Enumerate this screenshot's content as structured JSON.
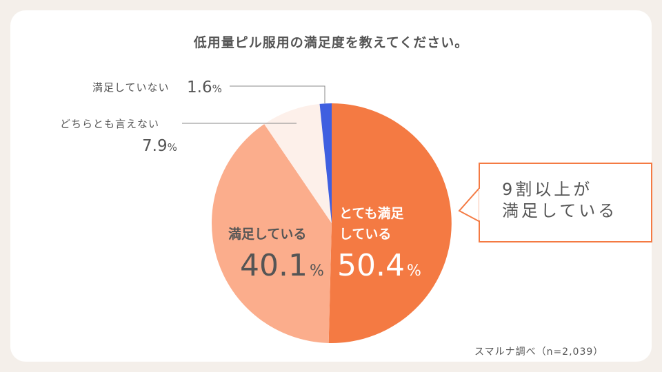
{
  "title": "低用量ピル服用の満足度を教えてください。",
  "chart_data": {
    "type": "pie",
    "slices": [
      {
        "label": "とても満足している",
        "label_lines": [
          "とても満足",
          "している"
        ],
        "value": 50.4,
        "color": "#f47a43"
      },
      {
        "label": "満足している",
        "value": 40.1,
        "color": "#fbad8c"
      },
      {
        "label": "どちらとも言えない",
        "value": 7.9,
        "color": "#fdf0ea"
      },
      {
        "label": "満足していない",
        "value": 1.6,
        "color": "#3f5fe0"
      }
    ],
    "unit": "%"
  },
  "callout": {
    "line1": "9割以上が",
    "line2": "満足している"
  },
  "source": "スマルナ調べ（n=2,039）"
}
